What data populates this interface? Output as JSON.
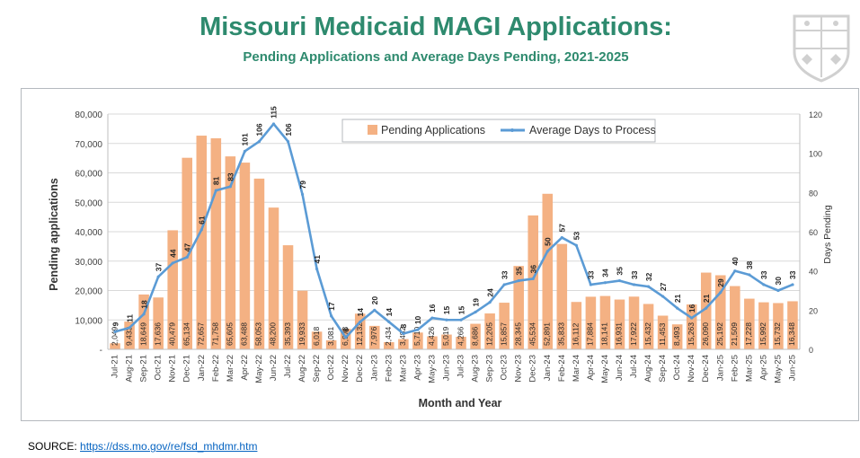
{
  "header": {
    "title": "Missouri Medicaid MAGI Applications:",
    "subtitle": "Pending Applications and Average Days Pending, 2021-2025"
  },
  "footer": {
    "source_label": "SOURCE:",
    "source_url": "https://dss.mo.gov/re/fsd_mhdmr.htm"
  },
  "colors": {
    "bar": "#f4b183",
    "line": "#5b9bd5",
    "title": "#2e8a6e"
  },
  "chart_data": {
    "type": "bar",
    "title": "",
    "xlabel": "Month and Year",
    "ylabel": "Pending applications",
    "y2label": "Days Pending",
    "ylim": [
      0,
      80000
    ],
    "y2lim": [
      0,
      120
    ],
    "yticks": [
      "-",
      "10,000",
      "20,000",
      "30,000",
      "40,000",
      "50,000",
      "60,000",
      "70,000",
      "80,000"
    ],
    "y2ticks": [
      "0",
      "20",
      "40",
      "60",
      "80",
      "100",
      "120"
    ],
    "legend_position": "top-center",
    "categories": [
      "Jul-21",
      "Aug-21",
      "Sep-21",
      "Oct-21",
      "Nov-21",
      "Dec-21",
      "Jan-22",
      "Feb-22",
      "Mar-22",
      "Apr-22",
      "May-22",
      "Jun-22",
      "Jul-22",
      "Aug-22",
      "Sep-22",
      "Oct-22",
      "Nov-22",
      "Dec-22",
      "Jan-23",
      "Feb-23",
      "Mar-23",
      "Apr-23",
      "May-23",
      "Jun-23",
      "Jul-23",
      "Aug-23",
      "Sep-23",
      "Oct-23",
      "Nov-23",
      "Dec-23",
      "Jan-24",
      "Feb-24",
      "Mar-24",
      "Apr-24",
      "May-24",
      "Jun-24",
      "Jul-24",
      "Aug-24",
      "Sep-24",
      "Oct-24",
      "Nov-24",
      "Dec-24",
      "Jan-25",
      "Feb-25",
      "Mar-25",
      "Apr-25",
      "May-25",
      "Jun-25"
    ],
    "series": [
      {
        "name": "Pending Applications",
        "type": "bar",
        "axis": "left",
        "values": [
          2049,
          9433,
          18649,
          17636,
          40479,
          65134,
          72657,
          71758,
          65605,
          63488,
          58053,
          48200,
          35393,
          19933,
          6018,
          3081,
          6978,
          12132,
          7976,
          2434,
          3482,
          5710,
          4426,
          5019,
          4266,
          8686,
          12205,
          15857,
          28345,
          45534,
          52891,
          35833,
          16112,
          17884,
          18141,
          16931,
          17922,
          15432,
          11453,
          8493,
          15263,
          26090,
          25192,
          21509,
          17228,
          15992,
          15732,
          16348
        ],
        "labels": [
          "2,049",
          "9,433",
          "18,649",
          "17,636",
          "40,479",
          "65,134",
          "72,657",
          "71,758",
          "65,605",
          "63,488",
          "58,053",
          "48,200",
          "35,393",
          "19,933",
          "6,018",
          "3,081",
          "6,978",
          "12,132",
          "7,976",
          "2,434",
          "3,482",
          "5,710",
          "4,426",
          "5,019",
          "4,266",
          "8,686",
          "12,205",
          "15,857",
          "28,345",
          "45,534",
          "52,891",
          "35,833",
          "16,112",
          "17,884",
          "18,141",
          "16,931",
          "17,922",
          "15,432",
          "11,453",
          "8,493",
          "15,263",
          "26,090",
          "25,192",
          "21,509",
          "17,228",
          "15,992",
          "15,732",
          "16,348"
        ]
      },
      {
        "name": "Average Days to Process",
        "type": "line",
        "axis": "right",
        "values": [
          9,
          11,
          18,
          37,
          44,
          47,
          61,
          81,
          83,
          101,
          106,
          115,
          106,
          79,
          41,
          17,
          6,
          14,
          20,
          14,
          8,
          10,
          16,
          15,
          15,
          19,
          24,
          33,
          35,
          36,
          50,
          57,
          53,
          33,
          34,
          35,
          33,
          32,
          27,
          21,
          16,
          21,
          29,
          40,
          38,
          33,
          30,
          33
        ],
        "labels": [
          "9",
          "11",
          "18",
          "37",
          "44",
          "47",
          "61",
          "81",
          "83",
          "101",
          "106",
          "115",
          "106",
          "79",
          "41",
          "17",
          "6",
          "14",
          "20",
          "14",
          "8",
          "10",
          "16",
          "15",
          "15",
          "19",
          "24",
          "33",
          "35",
          "36",
          "50",
          "57",
          "53",
          "33",
          "34",
          "35",
          "33",
          "32",
          "27",
          "21",
          "16",
          "21",
          "29",
          "40",
          "38",
          "33",
          "30",
          "33"
        ]
      }
    ]
  }
}
